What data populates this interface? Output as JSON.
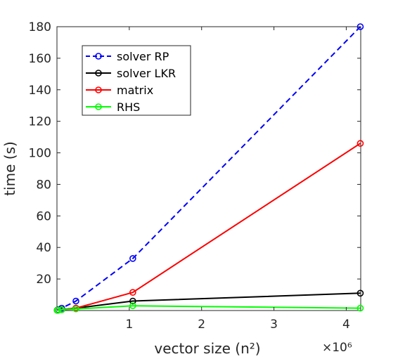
{
  "chart_data": {
    "type": "line",
    "title": "",
    "xlabel": "vector size (n²)",
    "ylabel": "time (s)",
    "x_multiplier_label": "×10⁶",
    "x_multiplier_value": 1000000,
    "xlim": [
      0,
      4.2
    ],
    "ylim": [
      0,
      180
    ],
    "xticks": [
      1,
      2,
      3,
      4
    ],
    "yticks": [
      20,
      40,
      60,
      80,
      100,
      120,
      140,
      160,
      180
    ],
    "xtick_labels": [
      "1",
      "2",
      "3",
      "4"
    ],
    "ytick_labels": [
      "20",
      "40",
      "60",
      "80",
      "100",
      "120",
      "140",
      "160",
      "180"
    ],
    "grid": false,
    "legend_position": "top-left",
    "series": [
      {
        "name": "solver RP",
        "color": "#0000ff",
        "dashed": true,
        "x": [
          0.004096,
          0.016384,
          0.065536,
          0.262144,
          1.048576,
          4.194304
        ],
        "y": [
          0.2,
          0.5,
          1.5,
          6,
          33,
          180
        ]
      },
      {
        "name": "solver LKR",
        "color": "#000000",
        "dashed": false,
        "x": [
          0.004096,
          0.016384,
          0.065536,
          0.262144,
          1.048576,
          4.194304
        ],
        "y": [
          0.2,
          0.3,
          0.6,
          1.5,
          6,
          11
        ]
      },
      {
        "name": "matrix",
        "color": "#ff0000",
        "dashed": false,
        "x": [
          0.004096,
          0.016384,
          0.065536,
          0.262144,
          1.048576,
          4.194304
        ],
        "y": [
          0.1,
          0.2,
          0.5,
          1.5,
          11.5,
          106
        ]
      },
      {
        "name": "RHS",
        "color": "#00ff00",
        "dashed": false,
        "x": [
          0.004096,
          0.016384,
          0.065536,
          0.262144,
          1.048576,
          4.194304
        ],
        "y": [
          0.1,
          0.2,
          0.5,
          1,
          3,
          1.5
        ]
      }
    ]
  }
}
